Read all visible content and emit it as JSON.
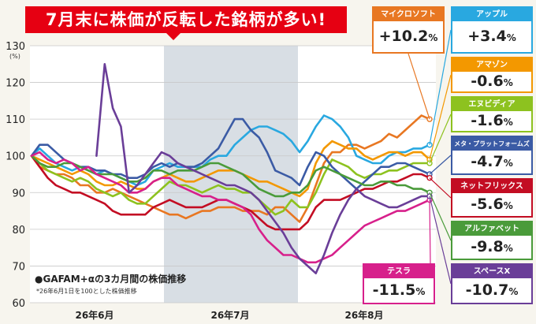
{
  "title": "7月末に株価が反転した銘柄が多い!",
  "note": "●GAFAM+αの3カ月間の株価推移",
  "subnote": "*26年6月1日を100とした株価推移",
  "chart_data": {
    "type": "line",
    "yunit": "(%)",
    "ylim": [
      60,
      130
    ],
    "yticks": [
      60,
      70,
      80,
      90,
      100,
      110,
      120,
      130
    ],
    "xticks": [
      "26年6月",
      "26年7月",
      "26年8月"
    ],
    "shaded_period": "26年7月",
    "grid": "horizontal",
    "series": [
      {
        "name": "マイクロソフト",
        "change": "+10.2",
        "color": "#e87722",
        "values": [
          100,
          97,
          96,
          95,
          95,
          94,
          92,
          92,
          90,
          90,
          91,
          90,
          89,
          88,
          87,
          86,
          85,
          84,
          84,
          83,
          84,
          85,
          85,
          86,
          86,
          86,
          85,
          85,
          85,
          84,
          86,
          86,
          84,
          82,
          86,
          92,
          98,
          101,
          101,
          103,
          103,
          102,
          103,
          104,
          106,
          105,
          107,
          109,
          111,
          110
        ]
      },
      {
        "name": "アップル",
        "change": "+3.4",
        "color": "#29a8e0",
        "values": [
          100,
          102,
          100,
          98,
          97,
          96,
          97,
          96,
          95,
          96,
          95,
          94,
          93,
          92,
          93,
          96,
          97,
          98,
          97,
          97,
          97,
          97,
          99,
          100,
          100,
          103,
          105,
          107,
          108,
          108,
          107,
          106,
          104,
          101,
          104,
          108,
          111,
          110,
          108,
          105,
          100,
          99,
          98,
          98,
          100,
          101,
          101,
          102,
          102,
          103
        ]
      },
      {
        "name": "アマゾン",
        "change": "-0.6",
        "color": "#f39800",
        "values": [
          100,
          99,
          98,
          97,
          96,
          95,
          96,
          95,
          93,
          92,
          92,
          93,
          92,
          91,
          91,
          93,
          94,
          95,
          94,
          93,
          93,
          94,
          95,
          96,
          96,
          96,
          95,
          94,
          93,
          93,
          92,
          91,
          90,
          89,
          91,
          98,
          102,
          104,
          103,
          102,
          102,
          100,
          99,
          100,
          101,
          101,
          100,
          101,
          101,
          99
        ]
      },
      {
        "name": "エヌビディア",
        "change": "-1.6",
        "color": "#8dc21f",
        "values": [
          100,
          98,
          96,
          95,
          94,
          93,
          94,
          93,
          91,
          90,
          89,
          90,
          88,
          87,
          87,
          89,
          91,
          93,
          92,
          92,
          91,
          90,
          91,
          92,
          91,
          91,
          90,
          90,
          88,
          86,
          84,
          85,
          88,
          86,
          86,
          90,
          95,
          99,
          98,
          97,
          95,
          94,
          95,
          95,
          96,
          96,
          97,
          98,
          98,
          98
        ]
      },
      {
        "name": "メタ・プラットフォームズ",
        "change": "-4.7",
        "color": "#3b5ba5",
        "values": [
          100,
          103,
          103,
          101,
          99,
          98,
          97,
          97,
          96,
          96,
          95,
          95,
          94,
          94,
          95,
          97,
          98,
          97,
          98,
          97,
          97,
          98,
          100,
          102,
          106,
          110,
          110,
          107,
          105,
          101,
          96,
          95,
          94,
          92,
          97,
          101,
          100,
          97,
          95,
          93,
          91,
          93,
          95,
          97,
          97,
          98,
          98,
          97,
          96,
          95
        ]
      },
      {
        "name": "ネットフリックス",
        "change": "-5.6",
        "color": "#c30d23",
        "values": [
          100,
          97,
          94,
          92,
          91,
          90,
          90,
          89,
          88,
          87,
          85,
          84,
          84,
          84,
          84,
          86,
          87,
          88,
          87,
          86,
          86,
          86,
          87,
          88,
          88,
          87,
          86,
          85,
          83,
          81,
          80,
          80,
          80,
          80,
          82,
          86,
          88,
          88,
          88,
          89,
          90,
          91,
          91,
          92,
          93,
          93,
          94,
          95,
          95,
          94
        ]
      },
      {
        "name": "アルファベット",
        "change": "-9.8",
        "color": "#4a9b3a",
        "values": [
          100,
          98,
          97,
          97,
          98,
          98,
          97,
          96,
          95,
          95,
          95,
          94,
          93,
          93,
          94,
          96,
          96,
          95,
          96,
          96,
          96,
          97,
          98,
          98,
          97,
          96,
          95,
          93,
          91,
          90,
          89,
          89,
          90,
          90,
          92,
          96,
          97,
          96,
          95,
          94,
          93,
          92,
          92,
          93,
          93,
          92,
          92,
          91,
          91,
          90
        ]
      },
      {
        "name": "テスラ",
        "change": "-11.5",
        "color": "#d7208b",
        "values": [
          100,
          101,
          99,
          98,
          99,
          98,
          96,
          97,
          95,
          94,
          93,
          92,
          90,
          90,
          91,
          93,
          94,
          94,
          92,
          91,
          90,
          89,
          89,
          88,
          88,
          87,
          86,
          84,
          80,
          77,
          75,
          73,
          73,
          72,
          71,
          71,
          72,
          73,
          75,
          77,
          79,
          81,
          82,
          83,
          84,
          85,
          85,
          86,
          87,
          88
        ]
      },
      {
        "name": "スペースX",
        "change": "-10.7",
        "color": "#6a3e98",
        "values": [
          null,
          null,
          null,
          null,
          null,
          null,
          null,
          null,
          100,
          125,
          113,
          108,
          90,
          92,
          95,
          98,
          101,
          100,
          98,
          97,
          96,
          95,
          94,
          93,
          92,
          92,
          91,
          90,
          88,
          85,
          82,
          79,
          75,
          72,
          70,
          68,
          73,
          79,
          84,
          88,
          91,
          89,
          88,
          87,
          86,
          86,
          87,
          88,
          89,
          89
        ]
      }
    ]
  }
}
